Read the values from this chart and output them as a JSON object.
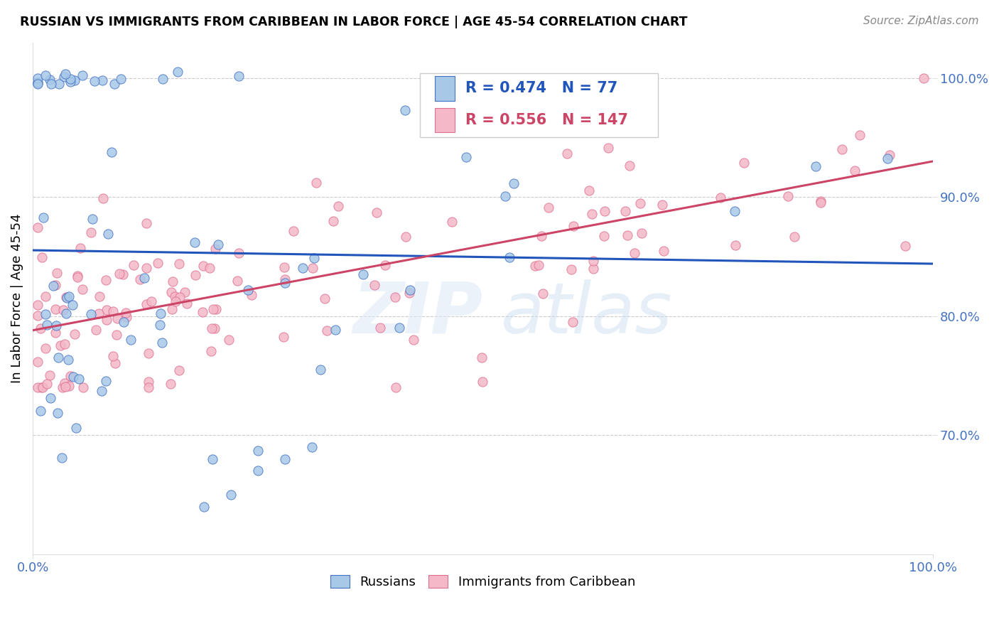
{
  "title": "RUSSIAN VS IMMIGRANTS FROM CARIBBEAN IN LABOR FORCE | AGE 45-54 CORRELATION CHART",
  "source": "Source: ZipAtlas.com",
  "ylabel": "In Labor Force | Age 45-54",
  "xlim": [
    0.0,
    1.0
  ],
  "ylim": [
    0.6,
    1.03
  ],
  "blue_R": 0.474,
  "blue_N": 77,
  "pink_R": 0.556,
  "pink_N": 147,
  "blue_fill_color": "#a8c8e8",
  "blue_edge_color": "#4472c4",
  "pink_fill_color": "#f4b8c8",
  "pink_edge_color": "#e07090",
  "blue_line_color": "#2255bb",
  "pink_line_color": "#cc4466",
  "legend_blue_color": "#2255bb",
  "legend_pink_color": "#cc4466",
  "grid_color": "#cccccc",
  "tick_color": "#4472c4",
  "ytick_positions": [
    0.7,
    0.8,
    0.9,
    1.0
  ],
  "ytick_labels": [
    "70.0%",
    "80.0%",
    "90.0%",
    "100.0%"
  ],
  "xtick_positions": [
    0.0,
    1.0
  ],
  "xtick_labels": [
    "0.0%",
    "100.0%"
  ]
}
